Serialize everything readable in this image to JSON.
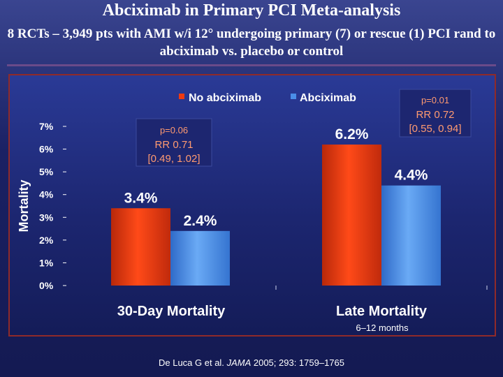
{
  "slide": {
    "title": "Abciximab in Primary PCI Meta-analysis",
    "subtitle": "8 RCTs – 3,949 pts with AMI w/i 12° undergoing primary (7) or rescue (1) PCI rand to abciximab vs. placebo or control"
  },
  "colors": {
    "no_abciximab": "#f03a10",
    "abciximab": "#4a8ee8",
    "accent_text": "#ff9a70",
    "axis": "#ffffff"
  },
  "chart_data": {
    "type": "bar",
    "ylabel": "Mortality",
    "ylim": [
      0,
      7
    ],
    "yticks": [
      "0%",
      "1%",
      "2%",
      "3%",
      "4%",
      "5%",
      "6%",
      "7%"
    ],
    "categories": [
      "30-Day Mortality",
      "Late Mortality"
    ],
    "category_sublabels": [
      "",
      "6–12 months"
    ],
    "series": [
      {
        "name": "No abciximab",
        "values": [
          3.4,
          6.2
        ],
        "labels": [
          "3.4%",
          "6.2%"
        ]
      },
      {
        "name": "Abciximab",
        "values": [
          2.4,
          4.4
        ],
        "labels": [
          "2.4%",
          "4.4%"
        ]
      }
    ],
    "annotations": [
      {
        "p": "p=0.06",
        "rr": "RR 0.71",
        "ci": "[0.49, 1.02]"
      },
      {
        "p": "p=0.01",
        "rr": "RR 0.72",
        "ci": "[0.55, 0.94]"
      }
    ],
    "legend_position": "top"
  },
  "citation": {
    "authors": "De Luca G et al.",
    "journal": "JAMA",
    "details": "2005; 293: 1759–1765"
  }
}
